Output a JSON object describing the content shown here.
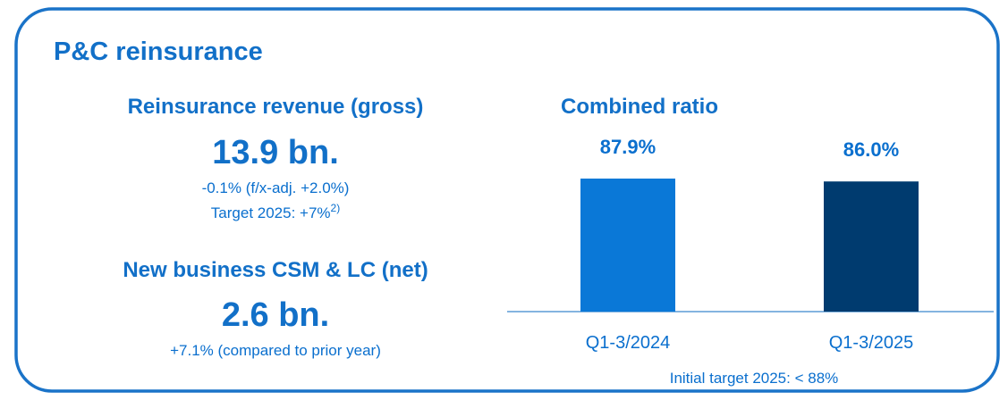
{
  "header": {
    "title": "P&C reinsurance"
  },
  "revenue": {
    "label": "Reinsurance revenue (gross)",
    "value": "13.9 bn.",
    "change": "-0.1% (f/x-adj. +2.0%)",
    "target": "Target 2025: +7%",
    "target_note": "2)"
  },
  "new_business": {
    "label": "New business CSM & LC (net)",
    "value": "2.6 bn.",
    "change": "+7.1% (compared to prior year)"
  },
  "chart_data": {
    "type": "bar",
    "title": "Combined ratio",
    "categories": [
      "Q1-3/2024",
      "Q1-3/2025"
    ],
    "values": [
      87.9,
      86.0
    ],
    "value_labels": [
      "87.9%",
      "86.0%"
    ],
    "colors": [
      "#0a78d7",
      "#003b6f"
    ],
    "ylim": [
      0,
      100
    ],
    "annotation": "Initial target 2025: < 88%"
  }
}
